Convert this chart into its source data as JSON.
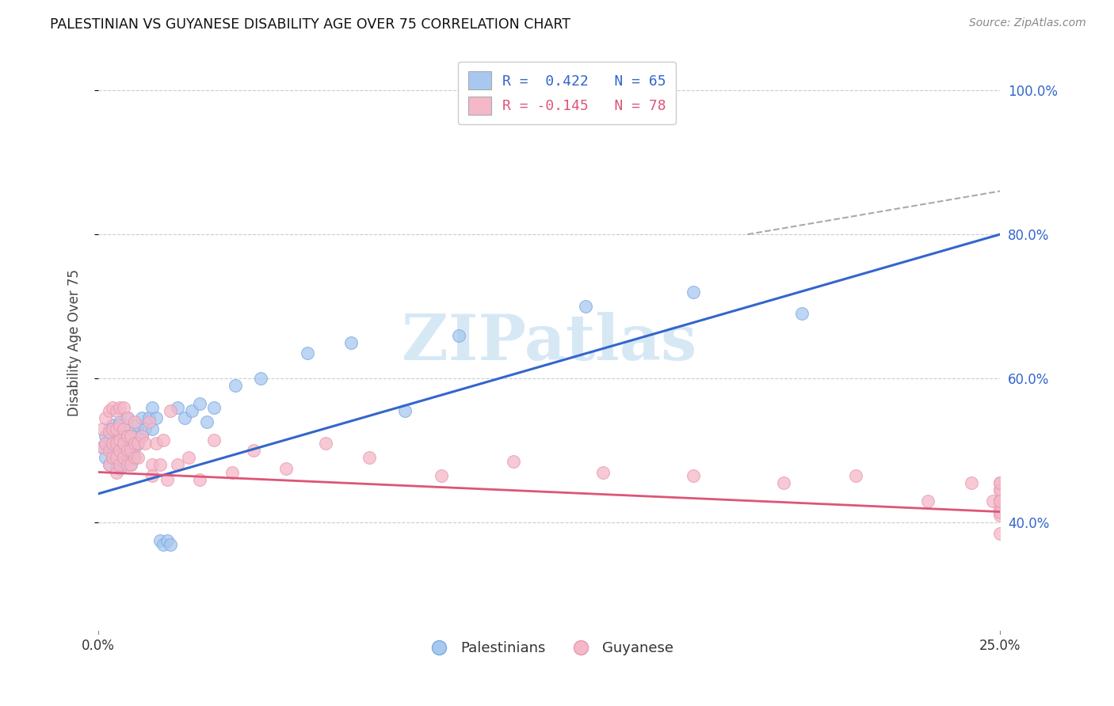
{
  "title": "PALESTINIAN VS GUYANESE DISABILITY AGE OVER 75 CORRELATION CHART",
  "source": "Source: ZipAtlas.com",
  "ylabel": "Disability Age Over 75",
  "xlim": [
    0.0,
    0.25
  ],
  "ylim": [
    0.25,
    1.05
  ],
  "yticks": [
    0.4,
    0.6,
    0.8,
    1.0
  ],
  "ytick_labels": [
    "40.0%",
    "60.0%",
    "80.0%",
    "100.0%"
  ],
  "xtick_positions": [
    0.0,
    0.25
  ],
  "xtick_labels": [
    "0.0%",
    "25.0%"
  ],
  "legend_line1": "R =  0.422   N = 65",
  "legend_line2": "R = -0.145   N = 78",
  "legend_label_blue": "Palestinians",
  "legend_label_pink": "Guyanese",
  "blue_fill": "#a8c8f0",
  "blue_edge": "#7aaae0",
  "pink_fill": "#f4b8c8",
  "pink_edge": "#e898b0",
  "blue_line_color": "#3366cc",
  "pink_line_color": "#dd5577",
  "dashed_line_color": "#aaaaaa",
  "watermark_color": "#d0e4f4",
  "grid_color": "#cccccc",
  "blue_scatter_x": [
    0.001,
    0.002,
    0.002,
    0.003,
    0.003,
    0.003,
    0.003,
    0.004,
    0.004,
    0.004,
    0.004,
    0.005,
    0.005,
    0.005,
    0.005,
    0.005,
    0.006,
    0.006,
    0.006,
    0.006,
    0.006,
    0.006,
    0.007,
    0.007,
    0.007,
    0.007,
    0.007,
    0.008,
    0.008,
    0.008,
    0.008,
    0.009,
    0.009,
    0.009,
    0.01,
    0.01,
    0.01,
    0.011,
    0.011,
    0.012,
    0.012,
    0.013,
    0.014,
    0.015,
    0.015,
    0.016,
    0.017,
    0.018,
    0.019,
    0.02,
    0.022,
    0.024,
    0.026,
    0.028,
    0.03,
    0.032,
    0.038,
    0.045,
    0.058,
    0.07,
    0.085,
    0.1,
    0.135,
    0.165,
    0.195
  ],
  "blue_scatter_y": [
    0.505,
    0.49,
    0.52,
    0.48,
    0.505,
    0.515,
    0.53,
    0.49,
    0.505,
    0.52,
    0.535,
    0.48,
    0.495,
    0.505,
    0.515,
    0.525,
    0.475,
    0.49,
    0.5,
    0.51,
    0.52,
    0.54,
    0.485,
    0.495,
    0.51,
    0.52,
    0.535,
    0.49,
    0.505,
    0.52,
    0.545,
    0.48,
    0.5,
    0.52,
    0.49,
    0.505,
    0.525,
    0.51,
    0.535,
    0.52,
    0.545,
    0.53,
    0.545,
    0.53,
    0.56,
    0.545,
    0.375,
    0.37,
    0.375,
    0.37,
    0.56,
    0.545,
    0.555,
    0.565,
    0.54,
    0.56,
    0.59,
    0.6,
    0.635,
    0.65,
    0.555,
    0.66,
    0.7,
    0.72,
    0.69
  ],
  "pink_scatter_x": [
    0.001,
    0.001,
    0.002,
    0.002,
    0.003,
    0.003,
    0.003,
    0.003,
    0.004,
    0.004,
    0.004,
    0.004,
    0.005,
    0.005,
    0.005,
    0.005,
    0.005,
    0.006,
    0.006,
    0.006,
    0.006,
    0.006,
    0.007,
    0.007,
    0.007,
    0.007,
    0.008,
    0.008,
    0.008,
    0.008,
    0.009,
    0.009,
    0.009,
    0.01,
    0.01,
    0.01,
    0.011,
    0.011,
    0.012,
    0.013,
    0.014,
    0.015,
    0.015,
    0.016,
    0.017,
    0.018,
    0.019,
    0.02,
    0.022,
    0.025,
    0.028,
    0.032,
    0.037,
    0.043,
    0.052,
    0.063,
    0.075,
    0.095,
    0.115,
    0.14,
    0.165,
    0.19,
    0.21,
    0.23,
    0.242,
    0.248,
    0.25,
    0.25,
    0.25,
    0.25,
    0.25,
    0.25,
    0.25,
    0.25,
    0.25,
    0.25,
    0.25,
    0.25
  ],
  "pink_scatter_y": [
    0.505,
    0.53,
    0.51,
    0.545,
    0.48,
    0.5,
    0.525,
    0.555,
    0.49,
    0.51,
    0.53,
    0.56,
    0.47,
    0.49,
    0.51,
    0.53,
    0.555,
    0.48,
    0.5,
    0.515,
    0.535,
    0.56,
    0.49,
    0.51,
    0.53,
    0.56,
    0.48,
    0.5,
    0.52,
    0.545,
    0.48,
    0.5,
    0.52,
    0.49,
    0.51,
    0.54,
    0.49,
    0.51,
    0.52,
    0.51,
    0.54,
    0.48,
    0.465,
    0.51,
    0.48,
    0.515,
    0.46,
    0.555,
    0.48,
    0.49,
    0.46,
    0.515,
    0.47,
    0.5,
    0.475,
    0.51,
    0.49,
    0.465,
    0.485,
    0.47,
    0.465,
    0.455,
    0.465,
    0.43,
    0.455,
    0.43,
    0.445,
    0.42,
    0.43,
    0.415,
    0.455,
    0.43,
    0.41,
    0.445,
    0.415,
    0.385,
    0.455,
    0.43
  ],
  "blue_line_x": [
    0.0,
    0.25
  ],
  "blue_line_y": [
    0.44,
    0.8
  ],
  "pink_line_x": [
    0.0,
    0.25
  ],
  "pink_line_y": [
    0.47,
    0.415
  ],
  "dashed_line_x": [
    0.18,
    0.25
  ],
  "dashed_line_y": [
    0.8,
    0.86
  ]
}
